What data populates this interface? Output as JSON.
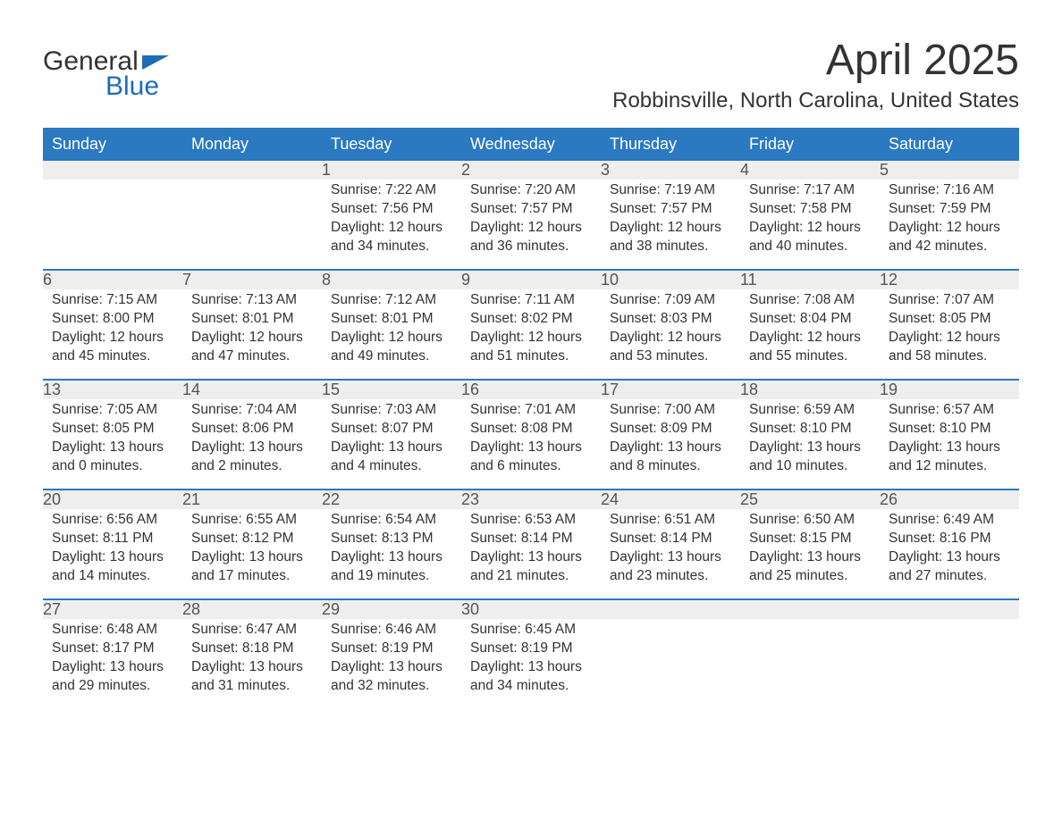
{
  "brand": {
    "word1": "General",
    "word2": "Blue"
  },
  "title": "April 2025",
  "subtitle": "Robbinsville, North Carolina, United States",
  "colors": {
    "header_bg": "#2a79c1",
    "header_text": "#ffffff",
    "daynum_bg": "#eeeeee",
    "week_sep": "#2a79c1",
    "text": "#333333",
    "brand_blue": "#1e6db5"
  },
  "day_names": [
    "Sunday",
    "Monday",
    "Tuesday",
    "Wednesday",
    "Thursday",
    "Friday",
    "Saturday"
  ],
  "weeks": [
    [
      null,
      null,
      {
        "n": "1",
        "sr": "Sunrise: 7:22 AM",
        "ss": "Sunset: 7:56 PM",
        "dl1": "Daylight: 12 hours",
        "dl2": "and 34 minutes."
      },
      {
        "n": "2",
        "sr": "Sunrise: 7:20 AM",
        "ss": "Sunset: 7:57 PM",
        "dl1": "Daylight: 12 hours",
        "dl2": "and 36 minutes."
      },
      {
        "n": "3",
        "sr": "Sunrise: 7:19 AM",
        "ss": "Sunset: 7:57 PM",
        "dl1": "Daylight: 12 hours",
        "dl2": "and 38 minutes."
      },
      {
        "n": "4",
        "sr": "Sunrise: 7:17 AM",
        "ss": "Sunset: 7:58 PM",
        "dl1": "Daylight: 12 hours",
        "dl2": "and 40 minutes."
      },
      {
        "n": "5",
        "sr": "Sunrise: 7:16 AM",
        "ss": "Sunset: 7:59 PM",
        "dl1": "Daylight: 12 hours",
        "dl2": "and 42 minutes."
      }
    ],
    [
      {
        "n": "6",
        "sr": "Sunrise: 7:15 AM",
        "ss": "Sunset: 8:00 PM",
        "dl1": "Daylight: 12 hours",
        "dl2": "and 45 minutes."
      },
      {
        "n": "7",
        "sr": "Sunrise: 7:13 AM",
        "ss": "Sunset: 8:01 PM",
        "dl1": "Daylight: 12 hours",
        "dl2": "and 47 minutes."
      },
      {
        "n": "8",
        "sr": "Sunrise: 7:12 AM",
        "ss": "Sunset: 8:01 PM",
        "dl1": "Daylight: 12 hours",
        "dl2": "and 49 minutes."
      },
      {
        "n": "9",
        "sr": "Sunrise: 7:11 AM",
        "ss": "Sunset: 8:02 PM",
        "dl1": "Daylight: 12 hours",
        "dl2": "and 51 minutes."
      },
      {
        "n": "10",
        "sr": "Sunrise: 7:09 AM",
        "ss": "Sunset: 8:03 PM",
        "dl1": "Daylight: 12 hours",
        "dl2": "and 53 minutes."
      },
      {
        "n": "11",
        "sr": "Sunrise: 7:08 AM",
        "ss": "Sunset: 8:04 PM",
        "dl1": "Daylight: 12 hours",
        "dl2": "and 55 minutes."
      },
      {
        "n": "12",
        "sr": "Sunrise: 7:07 AM",
        "ss": "Sunset: 8:05 PM",
        "dl1": "Daylight: 12 hours",
        "dl2": "and 58 minutes."
      }
    ],
    [
      {
        "n": "13",
        "sr": "Sunrise: 7:05 AM",
        "ss": "Sunset: 8:05 PM",
        "dl1": "Daylight: 13 hours",
        "dl2": "and 0 minutes."
      },
      {
        "n": "14",
        "sr": "Sunrise: 7:04 AM",
        "ss": "Sunset: 8:06 PM",
        "dl1": "Daylight: 13 hours",
        "dl2": "and 2 minutes."
      },
      {
        "n": "15",
        "sr": "Sunrise: 7:03 AM",
        "ss": "Sunset: 8:07 PM",
        "dl1": "Daylight: 13 hours",
        "dl2": "and 4 minutes."
      },
      {
        "n": "16",
        "sr": "Sunrise: 7:01 AM",
        "ss": "Sunset: 8:08 PM",
        "dl1": "Daylight: 13 hours",
        "dl2": "and 6 minutes."
      },
      {
        "n": "17",
        "sr": "Sunrise: 7:00 AM",
        "ss": "Sunset: 8:09 PM",
        "dl1": "Daylight: 13 hours",
        "dl2": "and 8 minutes."
      },
      {
        "n": "18",
        "sr": "Sunrise: 6:59 AM",
        "ss": "Sunset: 8:10 PM",
        "dl1": "Daylight: 13 hours",
        "dl2": "and 10 minutes."
      },
      {
        "n": "19",
        "sr": "Sunrise: 6:57 AM",
        "ss": "Sunset: 8:10 PM",
        "dl1": "Daylight: 13 hours",
        "dl2": "and 12 minutes."
      }
    ],
    [
      {
        "n": "20",
        "sr": "Sunrise: 6:56 AM",
        "ss": "Sunset: 8:11 PM",
        "dl1": "Daylight: 13 hours",
        "dl2": "and 14 minutes."
      },
      {
        "n": "21",
        "sr": "Sunrise: 6:55 AM",
        "ss": "Sunset: 8:12 PM",
        "dl1": "Daylight: 13 hours",
        "dl2": "and 17 minutes."
      },
      {
        "n": "22",
        "sr": "Sunrise: 6:54 AM",
        "ss": "Sunset: 8:13 PM",
        "dl1": "Daylight: 13 hours",
        "dl2": "and 19 minutes."
      },
      {
        "n": "23",
        "sr": "Sunrise: 6:53 AM",
        "ss": "Sunset: 8:14 PM",
        "dl1": "Daylight: 13 hours",
        "dl2": "and 21 minutes."
      },
      {
        "n": "24",
        "sr": "Sunrise: 6:51 AM",
        "ss": "Sunset: 8:14 PM",
        "dl1": "Daylight: 13 hours",
        "dl2": "and 23 minutes."
      },
      {
        "n": "25",
        "sr": "Sunrise: 6:50 AM",
        "ss": "Sunset: 8:15 PM",
        "dl1": "Daylight: 13 hours",
        "dl2": "and 25 minutes."
      },
      {
        "n": "26",
        "sr": "Sunrise: 6:49 AM",
        "ss": "Sunset: 8:16 PM",
        "dl1": "Daylight: 13 hours",
        "dl2": "and 27 minutes."
      }
    ],
    [
      {
        "n": "27",
        "sr": "Sunrise: 6:48 AM",
        "ss": "Sunset: 8:17 PM",
        "dl1": "Daylight: 13 hours",
        "dl2": "and 29 minutes."
      },
      {
        "n": "28",
        "sr": "Sunrise: 6:47 AM",
        "ss": "Sunset: 8:18 PM",
        "dl1": "Daylight: 13 hours",
        "dl2": "and 31 minutes."
      },
      {
        "n": "29",
        "sr": "Sunrise: 6:46 AM",
        "ss": "Sunset: 8:19 PM",
        "dl1": "Daylight: 13 hours",
        "dl2": "and 32 minutes."
      },
      {
        "n": "30",
        "sr": "Sunrise: 6:45 AM",
        "ss": "Sunset: 8:19 PM",
        "dl1": "Daylight: 13 hours",
        "dl2": "and 34 minutes."
      },
      null,
      null,
      null
    ]
  ]
}
